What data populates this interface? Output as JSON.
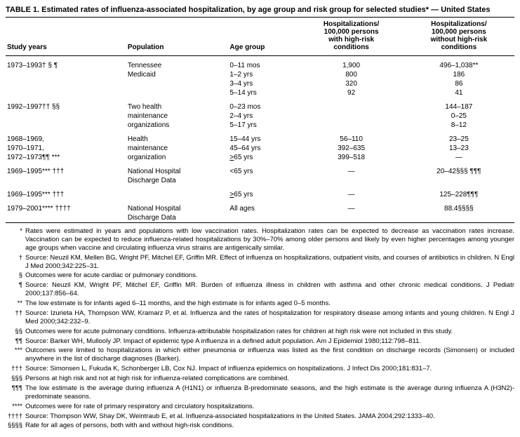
{
  "title": "TABLE 1. Estimated rates of influenza-associated hospitalization, by age group and risk group for selected studies* — United States",
  "columns": {
    "study_years": "Study years",
    "population": "Population",
    "age_group": "Age group",
    "high_risk": "Hospitalizations/\n100,000 persons\nwith high-risk\nconditions",
    "no_high_risk": "Hospitalizations/\n100,000 persons\nwithout high-risk\nconditions"
  },
  "rows": [
    {
      "study": "1973–1993† § ¶",
      "pop": "Tennessee",
      "age": "0–11 mos",
      "hr": "1,900",
      "nhr": "496–1,038**",
      "start": true
    },
    {
      "study": "",
      "pop": "Medicaid",
      "age": "1–2 yrs",
      "hr": "800",
      "nhr": "186"
    },
    {
      "study": "",
      "pop": "",
      "age": "3–4 yrs",
      "hr": "320",
      "nhr": "86"
    },
    {
      "study": "",
      "pop": "",
      "age": "5–14 yrs",
      "hr": "92",
      "nhr": "41"
    },
    {
      "study": "1992–1997†† §§",
      "pop": "Two health",
      "age": "0–23 mos",
      "hr": "",
      "nhr": "144–187",
      "start": true
    },
    {
      "study": "",
      "pop": "maintenance",
      "age": "2–4 yrs",
      "hr": "",
      "nhr": "0–25"
    },
    {
      "study": "",
      "pop": "organizations",
      "age": "5–17 yrs",
      "hr": "",
      "nhr": "8–12"
    },
    {
      "study": "1968–1969,",
      "pop": "Health",
      "age": "15–44 yrs",
      "hr": "56–110",
      "nhr": "23–25",
      "start": true
    },
    {
      "study": "1970–1971,",
      "pop": "maintenance",
      "age": "45–64 yrs",
      "hr": "392–635",
      "nhr": "13–23"
    },
    {
      "study": "1972–1973¶¶ ***",
      "pop": "organization",
      "age": ">65 yrs",
      "hr": "399–518",
      "nhr": "—",
      "ageUnderline": true
    },
    {
      "study": "1969–1995*** †††",
      "pop": "National Hospital",
      "age": "<65 yrs",
      "hr": "—",
      "nhr": "20–42§§§ ¶¶¶",
      "start": true
    },
    {
      "study": "",
      "pop": "Discharge Data",
      "age": "",
      "hr": "",
      "nhr": ""
    },
    {
      "study": "1969–1995*** †††",
      "pop": "",
      "age": ">65 yrs",
      "hr": "—",
      "nhr": "125–228¶¶¶",
      "start": true,
      "ageUnderline": true
    },
    {
      "study": "1979–2001**** ††††",
      "pop": "National Hospital",
      "age": "All ages",
      "hr": "—",
      "nhr": "88.4§§§§",
      "start": true
    },
    {
      "study": "",
      "pop": "Discharge Data",
      "age": "",
      "hr": "",
      "nhr": ""
    }
  ],
  "footnotes": [
    {
      "m": "*",
      "t": "Rates were estimated in years and populations with low vaccination rates. Hospitalization rates can be expected to decrease as vaccination rates increase. Vaccination can be expected to reduce influenza-related hospitalizations by 30%–70% among older persons and likely by even higher percentages among younger age groups when vaccine and circulating influenza virus strains are antigenically similar."
    },
    {
      "m": "†",
      "t": "Source: Neuzil KM, Mellen BG, Wright PF, Mitchel EF, Griffin MR. Effect of influenza on hospitalizations, outpatient visits, and courses of antibiotics in children. N Engl J Med 2000;342:225–31."
    },
    {
      "m": "§",
      "t": "Outcomes were for acute cardiac or pulmonary conditions."
    },
    {
      "m": "¶",
      "t": "Source: Neuzil KM, Wright PF, Mitchel EF, Griffin MR. Burden of influenza illness in children with asthma and other chronic medical conditions. J Pediatr 2000;137:856–64."
    },
    {
      "m": "**",
      "t": "The low estimate is for infants aged 6–11 months, and the high estimate is for infants aged 0–5 months."
    },
    {
      "m": "††",
      "t": "Source: Izurieta HA, Thompson WW, Kramarz P, et al. Influenza and the rates of hospitalization for respiratory disease among infants and young children. N Engl J Med 2000;342:232–9."
    },
    {
      "m": "§§",
      "t": "Outcomes were for acute pulmonary conditions. Influenza-attributable hospitalization rates for children at high risk were not included in this study."
    },
    {
      "m": "¶¶",
      "t": "Source: Barker WH, Mullooly JP. Impact of epidemic type A influenza in a defined adult population. Am J Epidemiol 1980;112:798–811."
    },
    {
      "m": "***",
      "t": "Outcomes were limited to hospitalizations in which either pneumonia or influenza was listed as the first condition on discharge records (Simonsen) or included anywhere in the list of discharge diagnoses (Barker)."
    },
    {
      "m": "†††",
      "t": "Source: Simonsen L, Fukuda K, Schonberger LB, Cox NJ. Impact of influenza epidemics on hospitalizations. J Infect Dis 2000;181:831–7."
    },
    {
      "m": "§§§",
      "t": "Persons at high risk and not at high risk for influenza-related complications are combined."
    },
    {
      "m": "¶¶¶",
      "t": "The low estimate is the average during influenza A (H1N1) or influenza B-predominate seasons, and the high estimate is the average during influenza A (H3N2)-predominate seasons."
    },
    {
      "m": "****",
      "t": "Outcomes were for rate of primary respiratory and circulatory hospitalizations."
    },
    {
      "m": "††††",
      "t": "Source: Thompson WW, Shay DK, Weintraub E, et al. Influenza-associated hospitalizations in the United States. JAMA 2004;292:1333–40."
    },
    {
      "m": "§§§§",
      "t": "Rate for all ages of persons, both with and without high-risk conditions."
    }
  ]
}
